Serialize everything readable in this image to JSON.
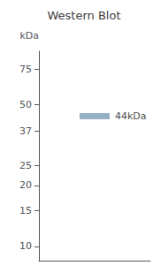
{
  "chart_data": {
    "type": "scatter",
    "title": "Western Blot",
    "y_label": "kDa",
    "categories": [
      null
    ],
    "values": [
      44
    ],
    "value_labels": [
      "44kDa"
    ],
    "data_labels": true,
    "color": "#7a9db5",
    "marker": "rect",
    "log": "y",
    "ylim": [
      8.5,
      92
    ],
    "yticks": [
      75,
      50,
      37,
      25,
      20,
      15,
      10
    ],
    "grid": false,
    "tick_labels": "y"
  }
}
